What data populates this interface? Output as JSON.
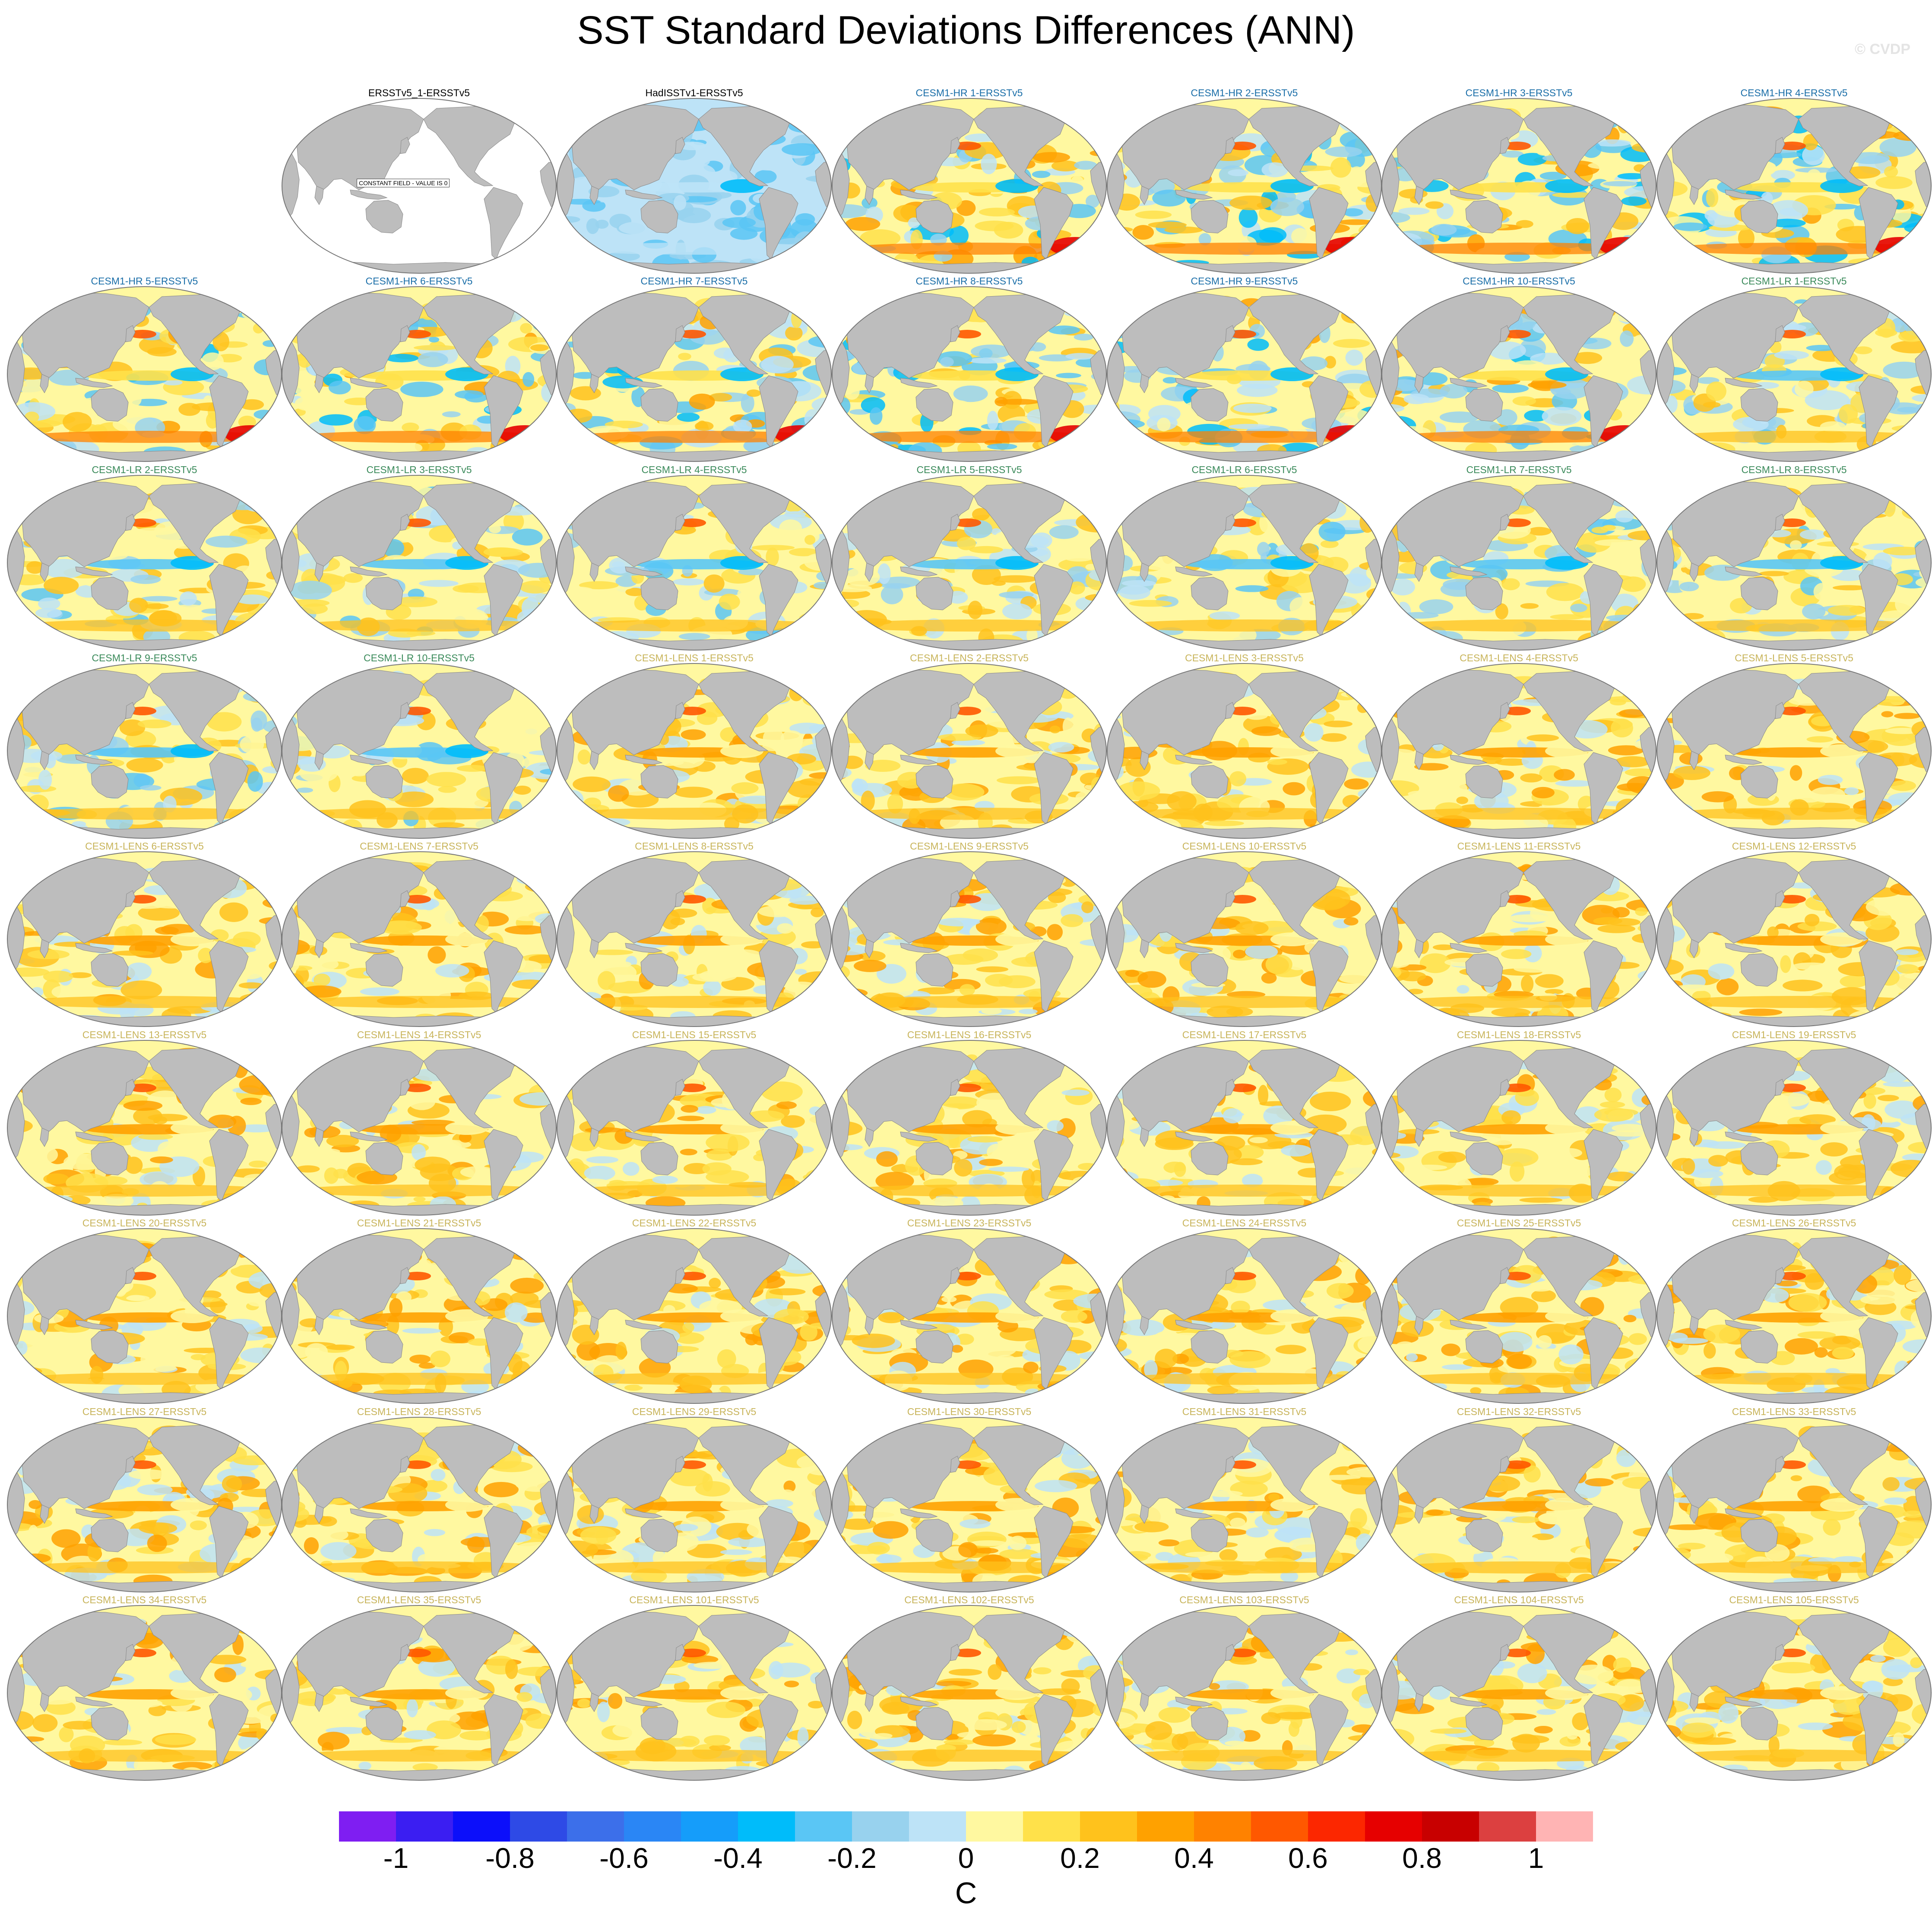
{
  "title": "SST Standard Deviations Differences (ANN)",
  "watermark": "© CVDP",
  "panels": [
    {
      "label": "",
      "group": "blank"
    },
    {
      "label": "ERSSTv5_1-ERSSTv5",
      "group": "obs",
      "note": "CONSTANT FIELD - VALUE IS 0"
    },
    {
      "label": "HadISSTv1-ERSSTv5",
      "group": "obs"
    },
    {
      "label": "CESM1-HR 1-ERSSTv5",
      "group": "hr"
    },
    {
      "label": "CESM1-HR 2-ERSSTv5",
      "group": "hr"
    },
    {
      "label": "CESM1-HR 3-ERSSTv5",
      "group": "hr"
    },
    {
      "label": "CESM1-HR 4-ERSSTv5",
      "group": "hr"
    },
    {
      "label": "CESM1-HR 5-ERSSTv5",
      "group": "hr"
    },
    {
      "label": "CESM1-HR 6-ERSSTv5",
      "group": "hr"
    },
    {
      "label": "CESM1-HR 7-ERSSTv5",
      "group": "hr"
    },
    {
      "label": "CESM1-HR 8-ERSSTv5",
      "group": "hr"
    },
    {
      "label": "CESM1-HR 9-ERSSTv5",
      "group": "hr"
    },
    {
      "label": "CESM1-HR 10-ERSSTv5",
      "group": "hr"
    },
    {
      "label": "CESM1-LR 1-ERSSTv5",
      "group": "lr"
    },
    {
      "label": "CESM1-LR 2-ERSSTv5",
      "group": "lr"
    },
    {
      "label": "CESM1-LR 3-ERSSTv5",
      "group": "lr"
    },
    {
      "label": "CESM1-LR 4-ERSSTv5",
      "group": "lr"
    },
    {
      "label": "CESM1-LR 5-ERSSTv5",
      "group": "lr"
    },
    {
      "label": "CESM1-LR 6-ERSSTv5",
      "group": "lr"
    },
    {
      "label": "CESM1-LR 7-ERSSTv5",
      "group": "lr"
    },
    {
      "label": "CESM1-LR 8-ERSSTv5",
      "group": "lr"
    },
    {
      "label": "CESM1-LR 9-ERSSTv5",
      "group": "lr"
    },
    {
      "label": "CESM1-LR 10-ERSSTv5",
      "group": "lr"
    },
    {
      "label": "CESM1-LENS 1-ERSSTv5",
      "group": "lens"
    },
    {
      "label": "CESM1-LENS 2-ERSSTv5",
      "group": "lens"
    },
    {
      "label": "CESM1-LENS 3-ERSSTv5",
      "group": "lens"
    },
    {
      "label": "CESM1-LENS 4-ERSSTv5",
      "group": "lens"
    },
    {
      "label": "CESM1-LENS 5-ERSSTv5",
      "group": "lens"
    },
    {
      "label": "CESM1-LENS 6-ERSSTv5",
      "group": "lens"
    },
    {
      "label": "CESM1-LENS 7-ERSSTv5",
      "group": "lens"
    },
    {
      "label": "CESM1-LENS 8-ERSSTv5",
      "group": "lens"
    },
    {
      "label": "CESM1-LENS 9-ERSSTv5",
      "group": "lens"
    },
    {
      "label": "CESM1-LENS 10-ERSSTv5",
      "group": "lens"
    },
    {
      "label": "CESM1-LENS 11-ERSSTv5",
      "group": "lens"
    },
    {
      "label": "CESM1-LENS 12-ERSSTv5",
      "group": "lens"
    },
    {
      "label": "CESM1-LENS 13-ERSSTv5",
      "group": "lens"
    },
    {
      "label": "CESM1-LENS 14-ERSSTv5",
      "group": "lens"
    },
    {
      "label": "CESM1-LENS 15-ERSSTv5",
      "group": "lens"
    },
    {
      "label": "CESM1-LENS 16-ERSSTv5",
      "group": "lens"
    },
    {
      "label": "CESM1-LENS 17-ERSSTv5",
      "group": "lens"
    },
    {
      "label": "CESM1-LENS 18-ERSSTv5",
      "group": "lens"
    },
    {
      "label": "CESM1-LENS 19-ERSSTv5",
      "group": "lens"
    },
    {
      "label": "CESM1-LENS 20-ERSSTv5",
      "group": "lens"
    },
    {
      "label": "CESM1-LENS 21-ERSSTv5",
      "group": "lens"
    },
    {
      "label": "CESM1-LENS 22-ERSSTv5",
      "group": "lens"
    },
    {
      "label": "CESM1-LENS 23-ERSSTv5",
      "group": "lens"
    },
    {
      "label": "CESM1-LENS 24-ERSSTv5",
      "group": "lens"
    },
    {
      "label": "CESM1-LENS 25-ERSSTv5",
      "group": "lens"
    },
    {
      "label": "CESM1-LENS 26-ERSSTv5",
      "group": "lens"
    },
    {
      "label": "CESM1-LENS 27-ERSSTv5",
      "group": "lens"
    },
    {
      "label": "CESM1-LENS 28-ERSSTv5",
      "group": "lens"
    },
    {
      "label": "CESM1-LENS 29-ERSSTv5",
      "group": "lens"
    },
    {
      "label": "CESM1-LENS 30-ERSSTv5",
      "group": "lens"
    },
    {
      "label": "CESM1-LENS 31-ERSSTv5",
      "group": "lens"
    },
    {
      "label": "CESM1-LENS 32-ERSSTv5",
      "group": "lens"
    },
    {
      "label": "CESM1-LENS 33-ERSSTv5",
      "group": "lens"
    },
    {
      "label": "CESM1-LENS 34-ERSSTv5",
      "group": "lens"
    },
    {
      "label": "CESM1-LENS 35-ERSSTv5",
      "group": "lens"
    },
    {
      "label": "CESM1-LENS 101-ERSSTv5",
      "group": "lens"
    },
    {
      "label": "CESM1-LENS 102-ERSSTv5",
      "group": "lens"
    },
    {
      "label": "CESM1-LENS 103-ERSSTv5",
      "group": "lens"
    },
    {
      "label": "CESM1-LENS 104-ERSSTv5",
      "group": "lens"
    },
    {
      "label": "CESM1-LENS 105-ERSSTv5",
      "group": "lens"
    }
  ],
  "group_title_colors": {
    "obs": "#000000",
    "hr": "#1a6ea8",
    "lr": "#3a8a5a",
    "lens": "#c8b45a"
  },
  "land_color": "#bdbdbd",
  "colorbar": {
    "unit": "C",
    "colors": [
      "#7f1ef2",
      "#3b1ef2",
      "#0c0ffa",
      "#2e4ae6",
      "#3c6fea",
      "#2a86f5",
      "#159dfa",
      "#00bcfa",
      "#5ac6f5",
      "#98d2ee",
      "#bde3f7",
      "#fff8a0",
      "#ffe14a",
      "#ffc21c",
      "#ffa100",
      "#ff8200",
      "#ff5800",
      "#fc2700",
      "#e60000",
      "#c80000",
      "#dc4040",
      "#ffb4b4"
    ],
    "tick_labels": [
      "-1",
      "-0.8",
      "-0.6",
      "-0.4",
      "-0.2",
      "0",
      "0.2",
      "0.4",
      "0.6",
      "0.8",
      "1"
    ]
  }
}
